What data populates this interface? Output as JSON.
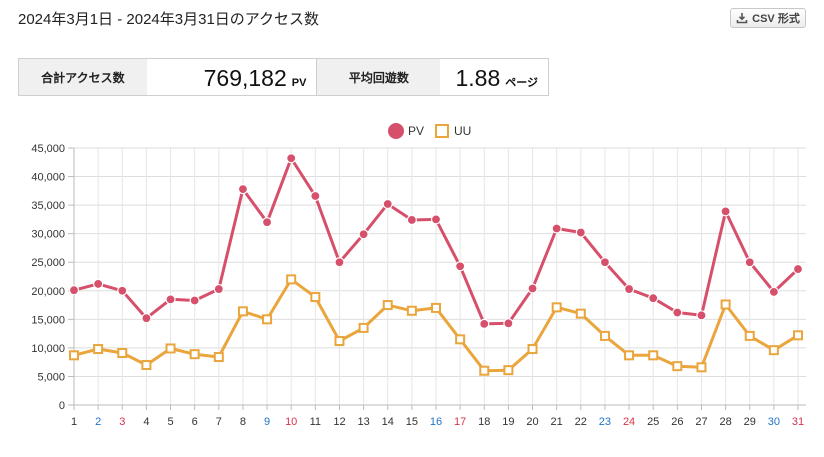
{
  "header": {
    "title": "2024年3月1日 - 2024年3月31日のアクセス数",
    "csv_button_label": "CSV 形式",
    "csv_icon": "download-icon"
  },
  "stats": {
    "total_label": "合計アクセス数",
    "total_value": "769,182",
    "total_unit": "PV",
    "avg_label": "平均回遊数",
    "avg_value": "1.88",
    "avg_unit": "ページ"
  },
  "chart_data": {
    "type": "line",
    "categories": [
      "1",
      "2",
      "3",
      "4",
      "5",
      "6",
      "7",
      "8",
      "9",
      "10",
      "11",
      "12",
      "13",
      "14",
      "15",
      "16",
      "17",
      "18",
      "19",
      "20",
      "21",
      "22",
      "23",
      "24",
      "25",
      "26",
      "27",
      "28",
      "29",
      "30",
      "31"
    ],
    "category_colors": [
      "#333333",
      "#1f73c7",
      "#d8334a",
      "#333333",
      "#333333",
      "#333333",
      "#333333",
      "#333333",
      "#1f73c7",
      "#d8334a",
      "#333333",
      "#333333",
      "#333333",
      "#333333",
      "#333333",
      "#1f73c7",
      "#d8334a",
      "#333333",
      "#333333",
      "#333333",
      "#333333",
      "#333333",
      "#1f73c7",
      "#d8334a",
      "#333333",
      "#333333",
      "#333333",
      "#333333",
      "#333333",
      "#1f73c7",
      "#d8334a"
    ],
    "series": [
      {
        "name": "PV",
        "color": "#d6506b",
        "marker": "circle",
        "values": [
          20100,
          21200,
          20000,
          15200,
          18500,
          18300,
          20300,
          37800,
          32000,
          43200,
          36600,
          25000,
          29900,
          35200,
          32400,
          32500,
          24300,
          14200,
          14300,
          20400,
          30900,
          30200,
          25000,
          20300,
          18700,
          16200,
          15700,
          33900,
          25000,
          19800,
          23800
        ]
      },
      {
        "name": "UU",
        "color": "#eaa53c",
        "marker": "square",
        "values": [
          8700,
          9800,
          9100,
          7000,
          9900,
          8900,
          8400,
          16400,
          15000,
          22000,
          18900,
          11200,
          13500,
          17500,
          16500,
          17000,
          11500,
          6000,
          6100,
          9800,
          17100,
          16000,
          12100,
          8700,
          8700,
          6800,
          6600,
          17600,
          12100,
          9600,
          12200
        ]
      }
    ],
    "y_ticks": [
      "45,000",
      "40,000",
      "35,000",
      "30,000",
      "25,000",
      "20,000",
      "15,000",
      "10,000",
      "5,000",
      "0"
    ],
    "ylim": [
      0,
      45000
    ],
    "grid": true,
    "legend_position": "top-center"
  }
}
